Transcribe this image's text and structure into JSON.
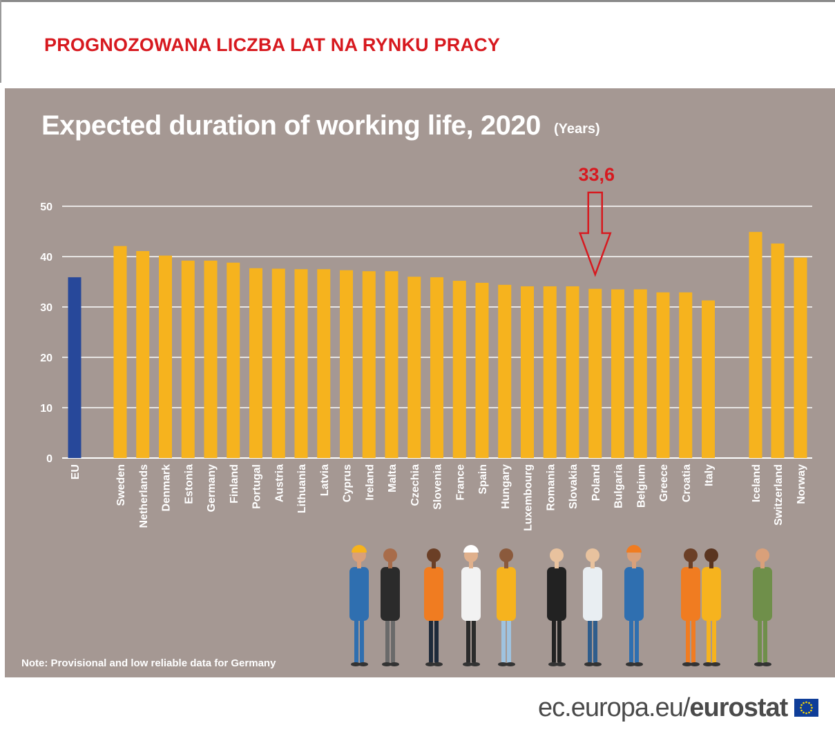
{
  "banner_text": "PROGNOZOWANA LICZBA LAT NA RYNKU PRACY",
  "footer": {
    "domain": "ec.europa.eu/",
    "brand": "eurostat"
  },
  "note": "Note: Provisional and low reliable data for Germany",
  "highlight": {
    "label": "33,6",
    "category": "Poland"
  },
  "colors": {
    "eu_bar": "#27489a",
    "country_bar": "#f6b31e",
    "highlight": "#d7191f",
    "panel": "#a59893"
  },
  "chart_data": {
    "type": "bar",
    "title": "Expected duration of working life, 2020",
    "unit": "(Years)",
    "xlabel": "",
    "ylabel": "",
    "ylim": [
      0,
      50
    ],
    "yticks": [
      0,
      10,
      20,
      30,
      40,
      50
    ],
    "grid": true,
    "categories": [
      "EU",
      "Sweden",
      "Netherlands",
      "Denmark",
      "Estonia",
      "Germany",
      "Finland",
      "Portugal",
      "Austria",
      "Lithuania",
      "Latvia",
      "Cyprus",
      "Ireland",
      "Malta",
      "Czechia",
      "Slovenia",
      "France",
      "Spain",
      "Hungary",
      "Luxembourg",
      "Romania",
      "Slovakia",
      "Poland",
      "Bulgaria",
      "Belgium",
      "Greece",
      "Croatia",
      "Italy",
      "Iceland",
      "Switzerland",
      "Norway"
    ],
    "groups": [
      "EU",
      "member",
      "member",
      "member",
      "member",
      "member",
      "member",
      "member",
      "member",
      "member",
      "member",
      "member",
      "member",
      "member",
      "member",
      "member",
      "member",
      "member",
      "member",
      "member",
      "member",
      "member",
      "member",
      "member",
      "member",
      "member",
      "member",
      "member",
      "efta",
      "efta",
      "efta"
    ],
    "values": [
      35.9,
      42.1,
      41.1,
      40.2,
      39.2,
      39.2,
      38.8,
      37.7,
      37.6,
      37.5,
      37.5,
      37.3,
      37.1,
      37.1,
      36.0,
      35.9,
      35.2,
      34.8,
      34.4,
      34.1,
      34.1,
      34.1,
      33.6,
      33.5,
      33.5,
      32.9,
      32.9,
      31.3,
      44.9,
      42.6,
      39.8
    ]
  }
}
